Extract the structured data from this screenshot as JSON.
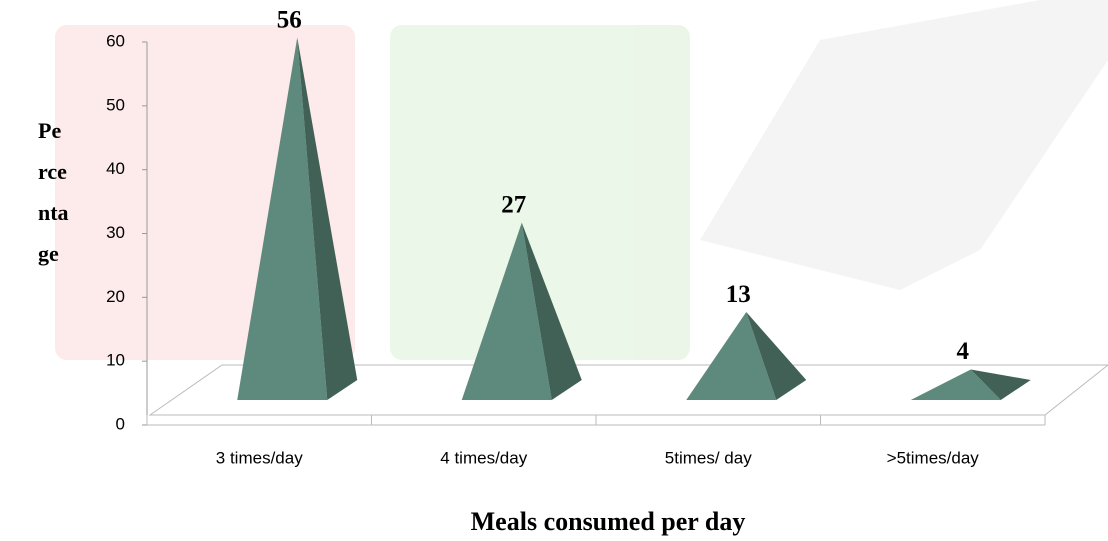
{
  "chart_data": {
    "type": "pyramid3d",
    "ylabel": [
      "Pe",
      "rce",
      "nta",
      "ge"
    ],
    "xlabel": "Meals consumed per day",
    "categories": [
      "3 times/day",
      "4 times/day",
      "5times/ day",
      ">5times/day"
    ],
    "values": [
      56,
      27,
      13,
      4
    ],
    "color": "#5d8a7c",
    "ylim": [
      0,
      60
    ],
    "yticks": [
      0,
      10,
      20,
      30,
      40,
      50,
      60
    ]
  }
}
